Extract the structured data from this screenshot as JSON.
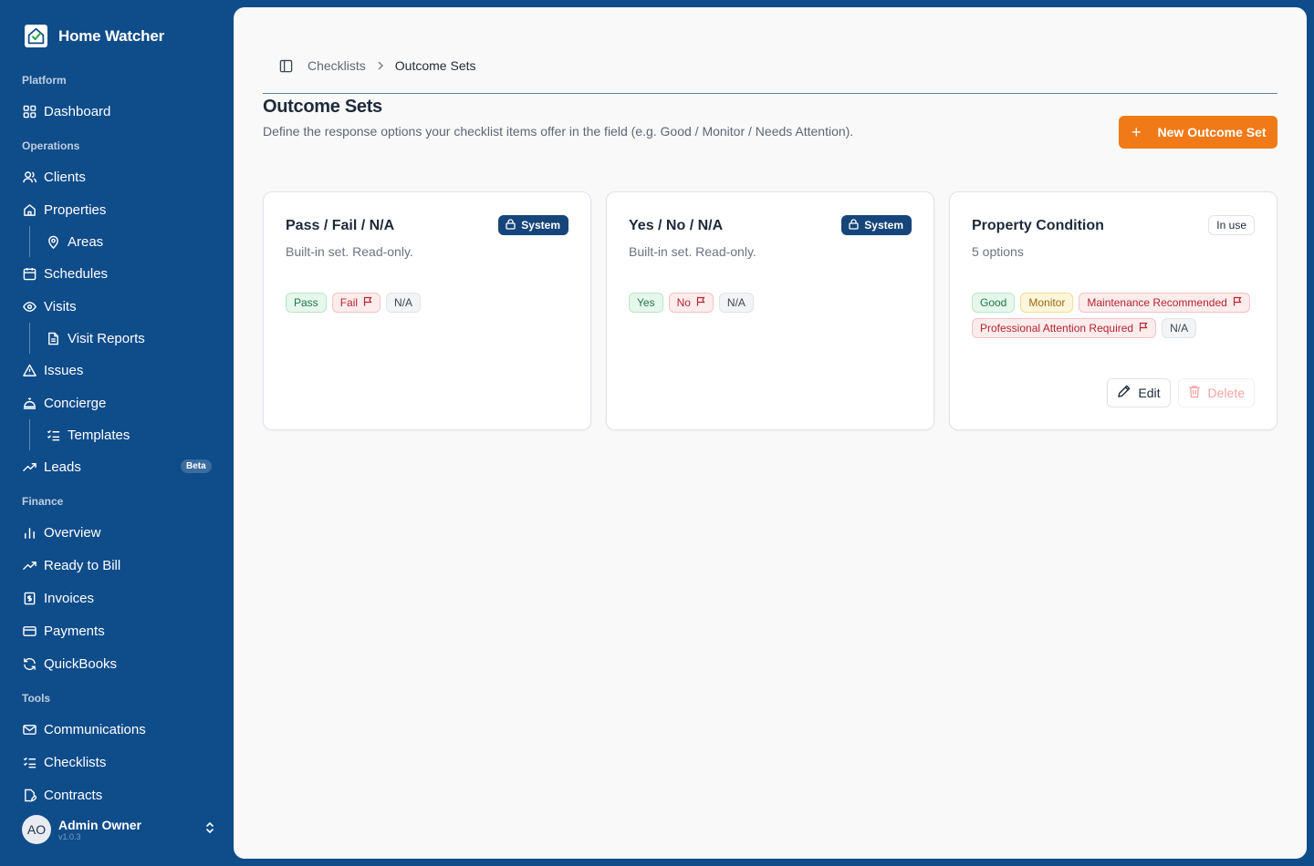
{
  "app": {
    "name": "Home Watcher"
  },
  "sidebar": {
    "groups": {
      "platform": "Platform",
      "operations": "Operations",
      "finance": "Finance",
      "tools": "Tools"
    },
    "items": {
      "dashboard": "Dashboard",
      "clients": "Clients",
      "properties": "Properties",
      "areas": "Areas",
      "schedules": "Schedules",
      "visits": "Visits",
      "visit_reports": "Visit Reports",
      "issues": "Issues",
      "concierge": "Concierge",
      "templates": "Templates",
      "leads": "Leads",
      "leads_badge": "Beta",
      "overview": "Overview",
      "ready_to_bill": "Ready to Bill",
      "invoices": "Invoices",
      "payments": "Payments",
      "quickbooks": "QuickBooks",
      "communications": "Communications",
      "checklists": "Checklists",
      "contracts": "Contracts"
    },
    "user": {
      "initials": "AO",
      "name": "Admin Owner",
      "version": "v1.0.3"
    }
  },
  "breadcrumb": {
    "parent": "Checklists",
    "current": "Outcome Sets"
  },
  "page": {
    "title": "Outcome Sets",
    "description": "Define the response options your checklist items offer in the field (e.g. Good / Monitor / Needs Attention).",
    "new_button": "New Outcome Set"
  },
  "cards": [
    {
      "title": "Pass / Fail / N/A",
      "subtitle": "Built-in set. Read-only.",
      "badge": "System",
      "chips": [
        {
          "label": "Pass",
          "color": "green"
        },
        {
          "label": "Fail",
          "color": "red",
          "flag": true
        },
        {
          "label": "N/A",
          "color": "gray"
        }
      ]
    },
    {
      "title": "Yes / No / N/A",
      "subtitle": "Built-in set. Read-only.",
      "badge": "System",
      "chips": [
        {
          "label": "Yes",
          "color": "green"
        },
        {
          "label": "No",
          "color": "red",
          "flag": true
        },
        {
          "label": "N/A",
          "color": "gray"
        }
      ]
    },
    {
      "title": "Property Condition",
      "subtitle": "5 options",
      "badge": "In use",
      "chips": [
        {
          "label": "Good",
          "color": "green"
        },
        {
          "label": "Monitor",
          "color": "yellow"
        },
        {
          "label": "Maintenance Recommended",
          "color": "red",
          "flag": true
        },
        {
          "label": "Professional Attention Required",
          "color": "red",
          "flag": true
        },
        {
          "label": "N/A",
          "color": "gray"
        }
      ],
      "edit_label": "Edit",
      "delete_label": "Delete"
    }
  ],
  "colors": {
    "sidebar": "#0f4c8a",
    "accent": "#f07a18",
    "system_badge": "#16457a"
  }
}
